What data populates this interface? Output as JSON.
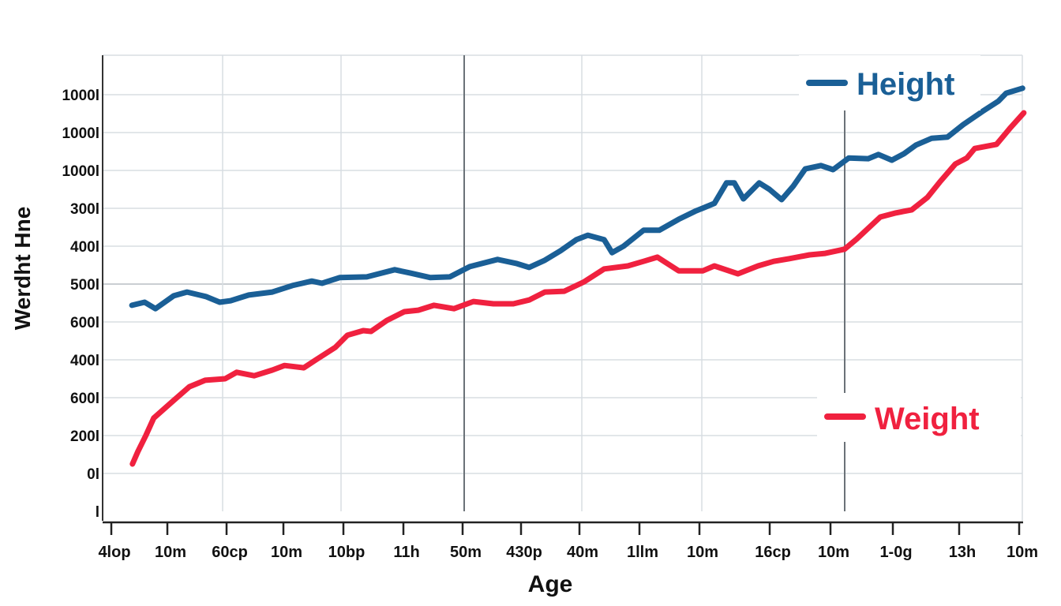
{
  "chart_data": {
    "type": "line",
    "title": "",
    "xlabel": "Age",
    "ylabel": "Werdht Hne",
    "x_tick_labels": [
      "4lop",
      "10m",
      "60cp",
      "10m",
      "10bp",
      "11h",
      "50m",
      "430p",
      "40m",
      "1llm",
      "10m",
      "16cp",
      "10m",
      "1-0g",
      "13h",
      "10m"
    ],
    "y_tick_labels": [
      "l",
      "0l",
      "200l",
      "600l",
      "400l",
      "600l",
      "500l",
      "400l",
      "300l",
      "1000l",
      "1000l",
      "1000l"
    ],
    "grid": true,
    "legend_placement": "right",
    "note_units": "x and y are given as positions along the printed tick sequences (tick index)",
    "series": [
      {
        "name": "Height",
        "color": "#1a5f96",
        "points": [
          [
            0.34,
            5.44
          ],
          [
            0.55,
            5.52
          ],
          [
            0.73,
            5.35
          ],
          [
            1.03,
            5.69
          ],
          [
            1.25,
            5.79
          ],
          [
            1.56,
            5.67
          ],
          [
            1.79,
            5.52
          ],
          [
            1.97,
            5.56
          ],
          [
            2.27,
            5.71
          ],
          [
            2.66,
            5.79
          ],
          [
            2.99,
            5.96
          ],
          [
            3.31,
            6.08
          ],
          [
            3.48,
            6.02
          ],
          [
            3.77,
            6.17
          ],
          [
            4.22,
            6.19
          ],
          [
            4.68,
            6.38
          ],
          [
            4.94,
            6.29
          ],
          [
            5.27,
            6.17
          ],
          [
            5.59,
            6.19
          ],
          [
            5.92,
            6.46
          ],
          [
            6.38,
            6.65
          ],
          [
            6.7,
            6.54
          ],
          [
            6.9,
            6.44
          ],
          [
            7.16,
            6.63
          ],
          [
            7.42,
            6.88
          ],
          [
            7.68,
            7.17
          ],
          [
            7.87,
            7.29
          ],
          [
            8.14,
            7.17
          ],
          [
            8.27,
            6.83
          ],
          [
            8.46,
            7.0
          ],
          [
            8.79,
            7.42
          ],
          [
            9.05,
            7.42
          ],
          [
            9.37,
            7.71
          ],
          [
            9.64,
            7.92
          ],
          [
            9.96,
            8.13
          ],
          [
            10.16,
            8.67
          ],
          [
            10.29,
            8.67
          ],
          [
            10.44,
            8.25
          ],
          [
            10.7,
            8.67
          ],
          [
            10.87,
            8.5
          ],
          [
            11.07,
            8.23
          ],
          [
            11.26,
            8.58
          ],
          [
            11.46,
            9.04
          ],
          [
            11.72,
            9.13
          ],
          [
            11.92,
            9.02
          ],
          [
            12.18,
            9.33
          ],
          [
            12.5,
            9.31
          ],
          [
            12.67,
            9.42
          ],
          [
            12.89,
            9.27
          ],
          [
            13.09,
            9.44
          ],
          [
            13.29,
            9.67
          ],
          [
            13.55,
            9.85
          ],
          [
            13.81,
            9.88
          ],
          [
            14.07,
            10.21
          ],
          [
            14.39,
            10.56
          ],
          [
            14.65,
            10.83
          ],
          [
            14.78,
            11.04
          ],
          [
            15.05,
            11.17
          ]
        ]
      },
      {
        "name": "Weight",
        "color": "#f0213f",
        "points": [
          [
            0.35,
            1.25
          ],
          [
            0.44,
            1.58
          ],
          [
            0.57,
            2.0
          ],
          [
            0.7,
            2.46
          ],
          [
            0.96,
            2.83
          ],
          [
            1.29,
            3.29
          ],
          [
            1.55,
            3.46
          ],
          [
            1.88,
            3.5
          ],
          [
            2.07,
            3.67
          ],
          [
            2.36,
            3.58
          ],
          [
            2.66,
            3.73
          ],
          [
            2.86,
            3.85
          ],
          [
            3.18,
            3.79
          ],
          [
            3.38,
            4.0
          ],
          [
            3.7,
            4.33
          ],
          [
            3.9,
            4.65
          ],
          [
            4.16,
            4.77
          ],
          [
            4.29,
            4.75
          ],
          [
            4.55,
            5.04
          ],
          [
            4.84,
            5.27
          ],
          [
            5.07,
            5.31
          ],
          [
            5.33,
            5.44
          ],
          [
            5.66,
            5.35
          ],
          [
            5.98,
            5.54
          ],
          [
            6.31,
            5.48
          ],
          [
            6.64,
            5.48
          ],
          [
            6.9,
            5.58
          ],
          [
            7.16,
            5.79
          ],
          [
            7.48,
            5.81
          ],
          [
            7.81,
            6.06
          ],
          [
            8.14,
            6.4
          ],
          [
            8.53,
            6.48
          ],
          [
            8.79,
            6.6
          ],
          [
            9.02,
            6.71
          ],
          [
            9.37,
            6.35
          ],
          [
            9.77,
            6.35
          ],
          [
            9.96,
            6.48
          ],
          [
            10.35,
            6.27
          ],
          [
            10.68,
            6.48
          ],
          [
            10.94,
            6.6
          ],
          [
            11.2,
            6.67
          ],
          [
            11.53,
            6.77
          ],
          [
            11.79,
            6.81
          ],
          [
            12.11,
            6.92
          ],
          [
            12.31,
            7.19
          ],
          [
            12.7,
            7.77
          ],
          [
            12.96,
            7.88
          ],
          [
            13.22,
            7.96
          ],
          [
            13.48,
            8.29
          ],
          [
            13.68,
            8.69
          ],
          [
            13.94,
            9.17
          ],
          [
            14.13,
            9.33
          ],
          [
            14.26,
            9.58
          ],
          [
            14.62,
            9.69
          ],
          [
            14.85,
            10.13
          ],
          [
            15.07,
            10.52
          ]
        ]
      }
    ]
  }
}
